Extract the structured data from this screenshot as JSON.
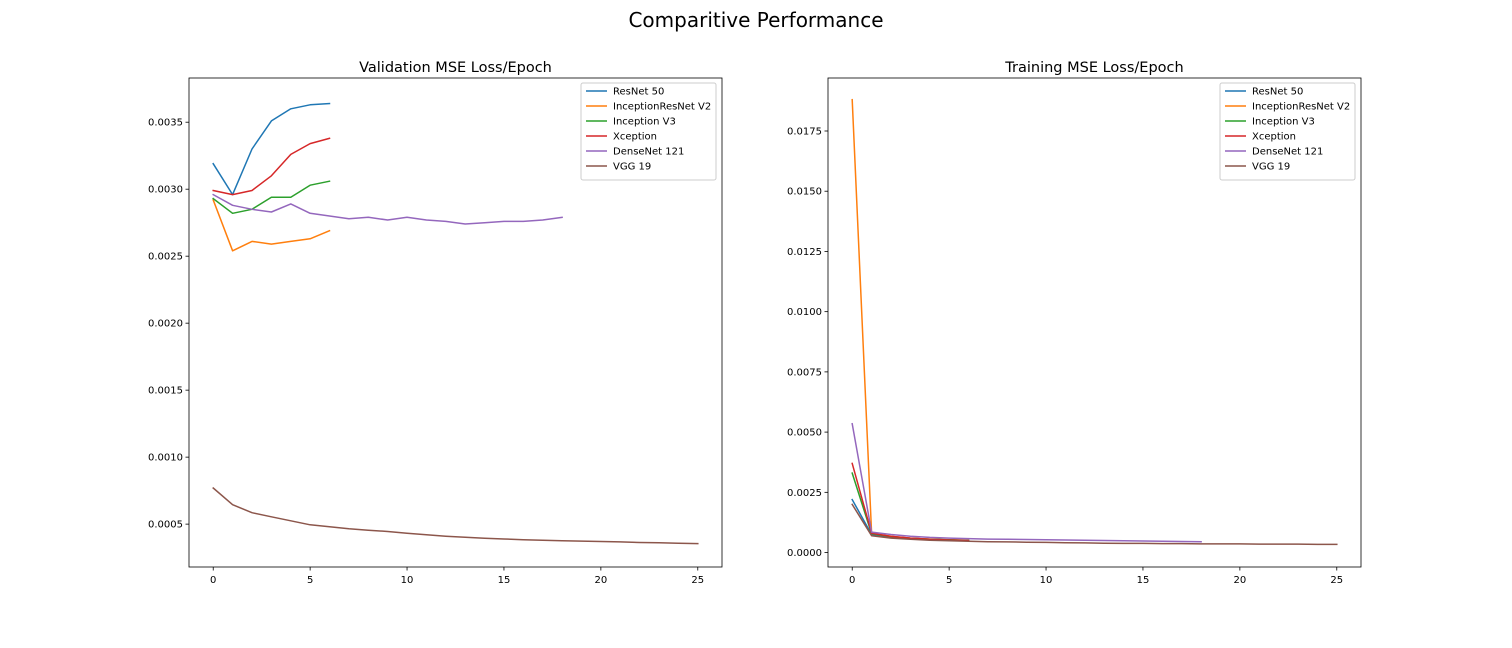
{
  "suptitle": "Comparitive Performance",
  "colors": {
    "ResNet 50": "#1f77b4",
    "InceptionResNet V2": "#ff7f0e",
    "Inception V3": "#2ca02c",
    "Xception": "#d62728",
    "DenseNet 121": "#9467bd",
    "VGG 19": "#8c564b"
  },
  "chart_data": [
    {
      "type": "line",
      "title": "Validation MSE Loss/Epoch",
      "xlabel": "",
      "ylabel": "",
      "xlim": [
        -1.25,
        26.25
      ],
      "ylim": [
        0.00018,
        0.00383
      ],
      "xticks": [
        0,
        5,
        10,
        15,
        20,
        25
      ],
      "yticks": [
        0.0005,
        0.001,
        0.0015,
        0.002,
        0.0025,
        0.003,
        0.0035
      ],
      "ytick_labels": [
        "0.0005",
        "0.0010",
        "0.0015",
        "0.0020",
        "0.0025",
        "0.0030",
        "0.0035"
      ],
      "legend": "top-right",
      "grid": false,
      "series": [
        {
          "name": "ResNet 50",
          "x": [
            0,
            1,
            2,
            3,
            4,
            5,
            6
          ],
          "values": [
            0.00319,
            0.00296,
            0.0033,
            0.00351,
            0.0036,
            0.00363,
            0.00364
          ]
        },
        {
          "name": "InceptionResNet V2",
          "x": [
            0,
            1,
            2,
            3,
            4,
            5,
            6
          ],
          "values": [
            0.00292,
            0.00254,
            0.00261,
            0.00259,
            0.00261,
            0.00263,
            0.00269
          ]
        },
        {
          "name": "Inception V3",
          "x": [
            0,
            1,
            2,
            3,
            4,
            5,
            6
          ],
          "values": [
            0.00293,
            0.00282,
            0.00285,
            0.00294,
            0.00294,
            0.00303,
            0.00306
          ]
        },
        {
          "name": "Xception",
          "x": [
            0,
            1,
            2,
            3,
            4,
            5,
            6
          ],
          "values": [
            0.00299,
            0.00296,
            0.00299,
            0.0031,
            0.00326,
            0.00334,
            0.00338
          ]
        },
        {
          "name": "DenseNet 121",
          "x": [
            0,
            1,
            2,
            3,
            4,
            5,
            6,
            7,
            8,
            9,
            10,
            11,
            12,
            13,
            14,
            15,
            16,
            17,
            18
          ],
          "values": [
            0.00296,
            0.00288,
            0.00285,
            0.00283,
            0.00289,
            0.00282,
            0.0028,
            0.00278,
            0.00279,
            0.00277,
            0.00279,
            0.00277,
            0.00276,
            0.00274,
            0.00275,
            0.00276,
            0.00276,
            0.00277,
            0.00279
          ]
        },
        {
          "name": "VGG 19",
          "x": [
            0,
            1,
            2,
            3,
            4,
            5,
            6,
            7,
            8,
            9,
            10,
            11,
            12,
            13,
            14,
            15,
            16,
            17,
            18,
            19,
            20,
            21,
            22,
            23,
            24,
            25
          ],
          "values": [
            0.00077,
            0.000645,
            0.000585,
            0.000555,
            0.000525,
            0.000495,
            0.00048,
            0.000465,
            0.000455,
            0.000445,
            0.000432,
            0.00042,
            0.00041,
            0.000402,
            0.000395,
            0.000389,
            0.000384,
            0.00038,
            0.000376,
            0.000373,
            0.00037,
            0.000367,
            0.000363,
            0.000361,
            0.000358,
            0.000355
          ]
        }
      ]
    },
    {
      "type": "line",
      "title": "Training MSE Loss/Epoch",
      "xlabel": "",
      "ylabel": "",
      "xlim": [
        -1.25,
        26.25
      ],
      "ylim": [
        -0.0006,
        0.0197
      ],
      "xticks": [
        0,
        5,
        10,
        15,
        20,
        25
      ],
      "yticks": [
        0.0,
        0.0025,
        0.005,
        0.0075,
        0.01,
        0.0125,
        0.015,
        0.0175
      ],
      "ytick_labels": [
        "0.0000",
        "0.0025",
        "0.0050",
        "0.0075",
        "0.0100",
        "0.0125",
        "0.0150",
        "0.0175"
      ],
      "legend": "top-right",
      "grid": false,
      "series": [
        {
          "name": "ResNet 50",
          "x": [
            0,
            1,
            2,
            3,
            4,
            5,
            6
          ],
          "values": [
            0.0022,
            0.00075,
            0.00065,
            0.00058,
            0.00055,
            0.00052,
            0.0005
          ]
        },
        {
          "name": "InceptionResNet V2",
          "x": [
            0,
            1,
            2,
            3,
            4,
            5,
            6
          ],
          "values": [
            0.0188,
            0.0008,
            0.00068,
            0.0006,
            0.00056,
            0.00053,
            0.00051
          ]
        },
        {
          "name": "Inception V3",
          "x": [
            0,
            1,
            2,
            3,
            4,
            5,
            6
          ],
          "values": [
            0.0033,
            0.00078,
            0.00066,
            0.00059,
            0.00055,
            0.00053,
            0.00051
          ]
        },
        {
          "name": "Xception",
          "x": [
            0,
            1,
            2,
            3,
            4,
            5,
            6
          ],
          "values": [
            0.0037,
            0.0008,
            0.00067,
            0.0006,
            0.00055,
            0.00052,
            0.0005
          ]
        },
        {
          "name": "DenseNet 121",
          "x": [
            0,
            1,
            2,
            3,
            4,
            5,
            6,
            7,
            8,
            9,
            10,
            11,
            12,
            13,
            14,
            15,
            16,
            17,
            18
          ],
          "values": [
            0.00535,
            0.00085,
            0.00075,
            0.00068,
            0.00063,
            0.0006,
            0.00058,
            0.00056,
            0.00055,
            0.00054,
            0.00053,
            0.00052,
            0.00051,
            0.0005,
            0.00049,
            0.00048,
            0.00047,
            0.00046,
            0.00045
          ]
        },
        {
          "name": "VGG 19",
          "x": [
            0,
            1,
            2,
            3,
            4,
            5,
            6,
            7,
            8,
            9,
            10,
            11,
            12,
            13,
            14,
            15,
            16,
            17,
            18,
            19,
            20,
            21,
            22,
            23,
            24,
            25
          ],
          "values": [
            0.002,
            0.0007,
            0.0006,
            0.00055,
            0.00051,
            0.00049,
            0.00047,
            0.00045,
            0.00044,
            0.00043,
            0.00042,
            0.00041,
            0.0004,
            0.00039,
            0.00038,
            0.00038,
            0.00037,
            0.00037,
            0.00036,
            0.00036,
            0.00036,
            0.00035,
            0.00035,
            0.00035,
            0.00034,
            0.00034
          ]
        }
      ]
    }
  ]
}
